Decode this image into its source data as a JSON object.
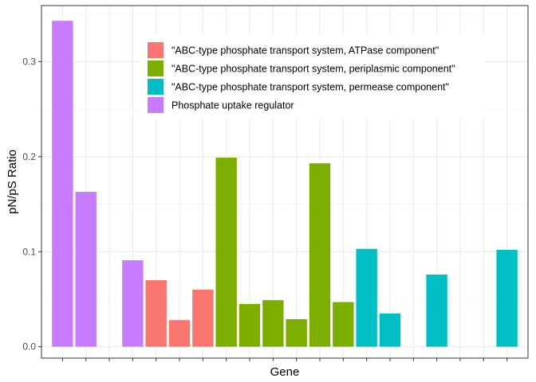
{
  "chart_data": {
    "type": "bar",
    "title": "",
    "xlabel": "Gene",
    "ylabel": "pN/pS Ratio",
    "ylim": [
      -0.012,
      0.359
    ],
    "yticks": [
      0.0,
      0.1,
      0.2,
      0.3
    ],
    "ytick_labels": [
      "0.0",
      "0.1",
      "0.2",
      "0.3"
    ],
    "grid": true,
    "legend_position": "inside-top",
    "series": [
      {
        "name": "\"ABC-type phosphate transport system, ATPase component\"",
        "color": "#F8766D"
      },
      {
        "name": "\"ABC-type phosphate transport system, periplasmic component\"",
        "color": "#7CAE00"
      },
      {
        "name": "\"ABC-type phosphate transport system, permease component\"",
        "color": "#00BFC4"
      },
      {
        "name": "Phosphate uptake regulator",
        "color": "#C77CFF"
      }
    ],
    "bars": [
      {
        "value": 0.343,
        "series": 3
      },
      {
        "value": 0.163,
        "series": 3
      },
      {
        "value": null,
        "series": null
      },
      {
        "value": 0.091,
        "series": 3
      },
      {
        "value": 0.07,
        "series": 0
      },
      {
        "value": 0.028,
        "series": 0
      },
      {
        "value": 0.06,
        "series": 0
      },
      {
        "value": 0.199,
        "series": 1
      },
      {
        "value": 0.045,
        "series": 1
      },
      {
        "value": 0.049,
        "series": 1
      },
      {
        "value": 0.029,
        "series": 1
      },
      {
        "value": 0.193,
        "series": 1
      },
      {
        "value": 0.047,
        "series": 1
      },
      {
        "value": 0.103,
        "series": 2
      },
      {
        "value": 0.035,
        "series": 2
      },
      {
        "value": null,
        "series": null
      },
      {
        "value": 0.076,
        "series": 2
      },
      {
        "value": null,
        "series": null
      },
      {
        "value": null,
        "series": null
      },
      {
        "value": 0.102,
        "series": 2
      }
    ]
  }
}
